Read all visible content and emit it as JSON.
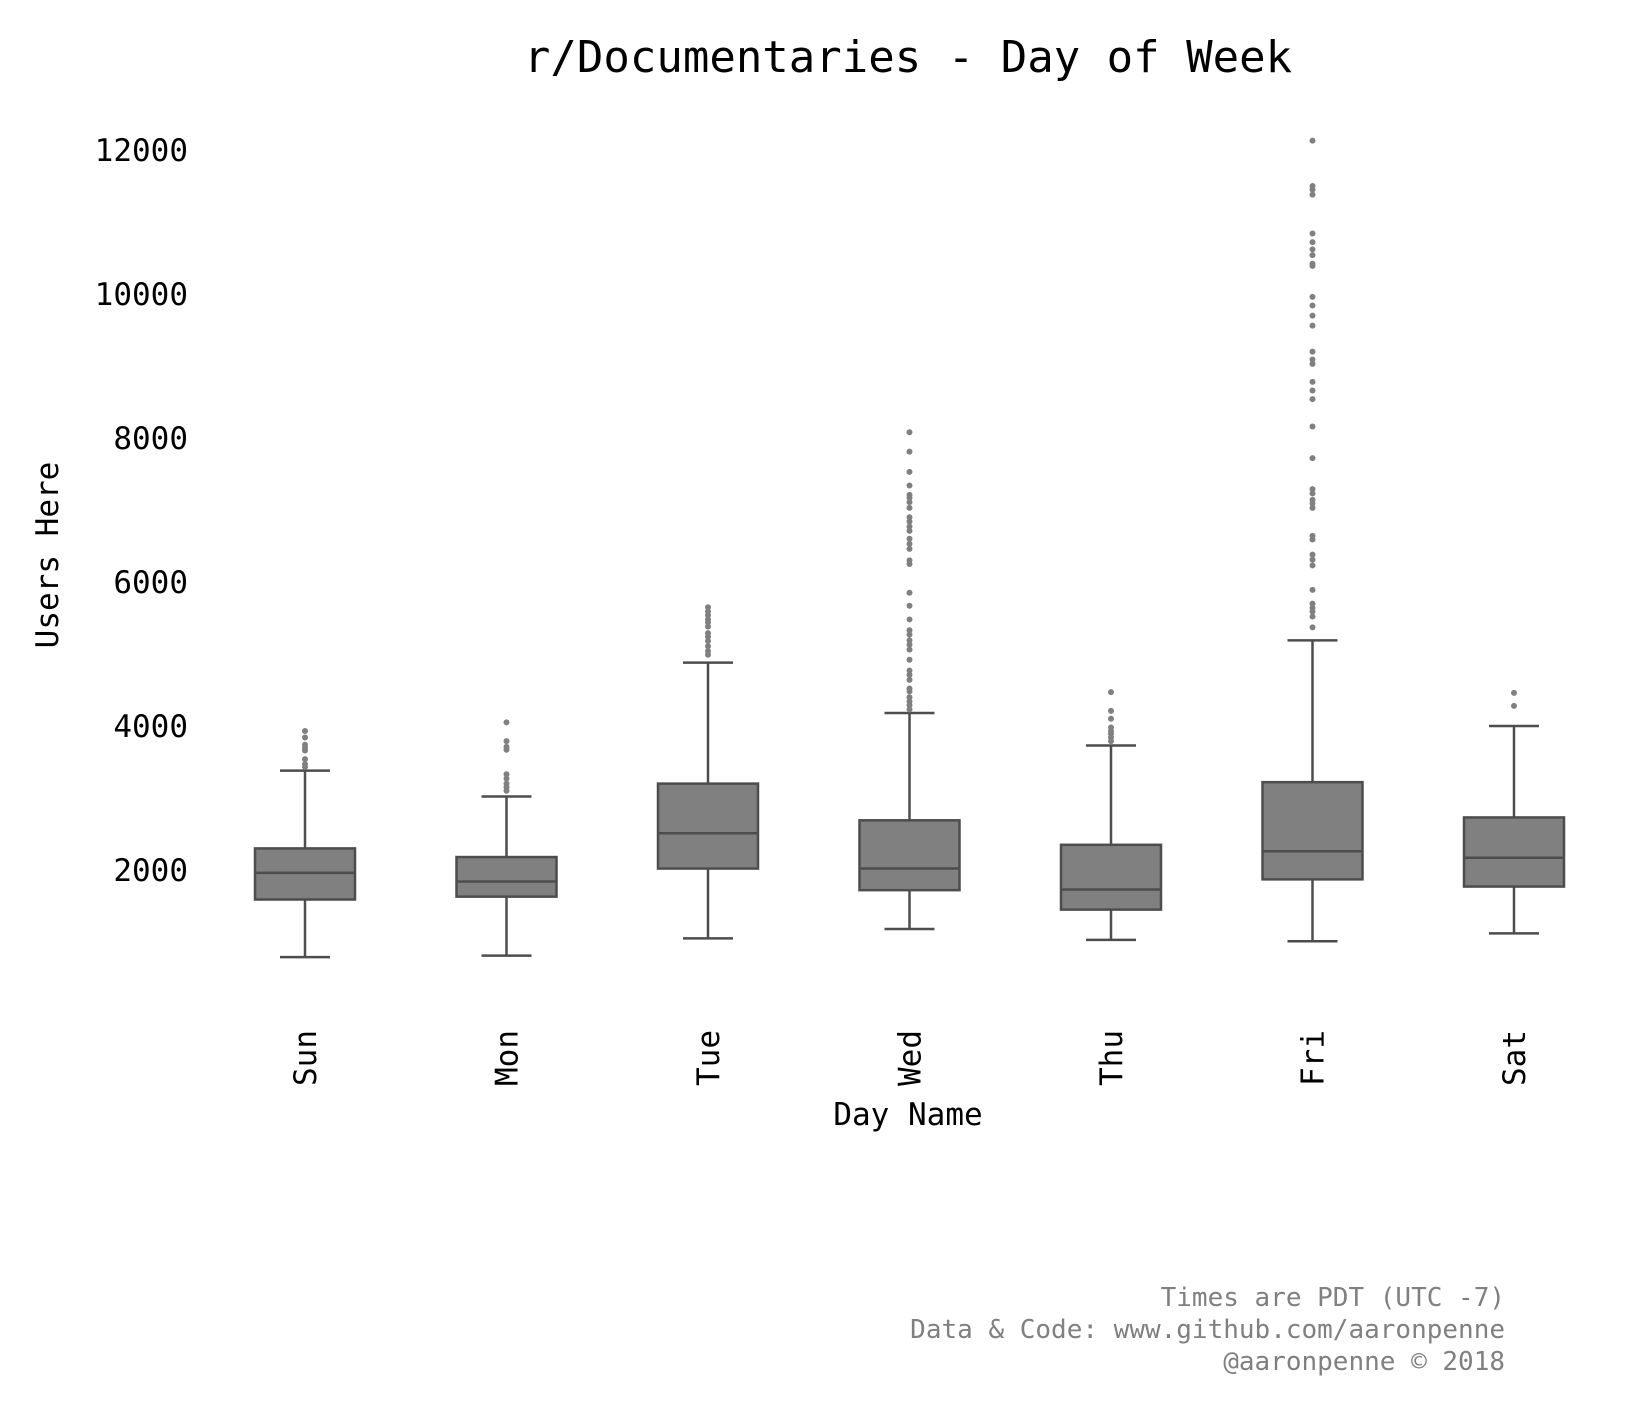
{
  "chart_data": {
    "type": "box",
    "title": "r/Documentaries - Day of Week",
    "xlabel": "Day Name",
    "ylabel": "Users Here",
    "ylim": [
      0,
      12500
    ],
    "yticks": [
      2000,
      4000,
      6000,
      8000,
      10000,
      12000
    ],
    "grid": false,
    "categories": [
      "Sun",
      "Mon",
      "Tue",
      "Wed",
      "Thu",
      "Fri",
      "Sat"
    ],
    "boxes": [
      {
        "category": "Sun",
        "whisker_low": 790,
        "q1": 1590,
        "median": 1960,
        "q3": 2300,
        "whisker_high": 3380,
        "outliers": [
          3430,
          3470,
          3540,
          3660,
          3700,
          3740,
          3840,
          3930
        ]
      },
      {
        "category": "Mon",
        "whisker_low": 810,
        "q1": 1630,
        "median": 1840,
        "q3": 2180,
        "whisker_high": 3020,
        "outliers": [
          3100,
          3150,
          3200,
          3270,
          3330,
          3670,
          3710,
          3790,
          4050
        ]
      },
      {
        "category": "Tue",
        "whisker_low": 1050,
        "q1": 2020,
        "median": 2510,
        "q3": 3200,
        "whisker_high": 4880,
        "outliers": [
          4990,
          5040,
          5110,
          5180,
          5240,
          5290,
          5380,
          5440,
          5480,
          5540,
          5590,
          5650
        ]
      },
      {
        "category": "Wed",
        "whisker_low": 1180,
        "q1": 1720,
        "median": 2020,
        "q3": 2690,
        "whisker_high": 4180,
        "outliers": [
          4230,
          4290,
          4340,
          4400,
          4480,
          4520,
          4640,
          4710,
          4770,
          4920,
          5060,
          5130,
          5190,
          5270,
          5330,
          5480,
          5670,
          5850,
          6250,
          6300,
          6460,
          6530,
          6600,
          6710,
          6770,
          6840,
          6900,
          7030,
          7110,
          7170,
          7210,
          7340,
          7530,
          7810,
          8080
        ]
      },
      {
        "category": "Thu",
        "whisker_low": 1030,
        "q1": 1450,
        "median": 1730,
        "q3": 2350,
        "whisker_high": 3730,
        "outliers": [
          3790,
          3840,
          3890,
          3930,
          3980,
          4100,
          4210,
          4470
        ]
      },
      {
        "category": "Fri",
        "whisker_low": 1010,
        "q1": 1870,
        "median": 2260,
        "q3": 3220,
        "whisker_high": 5190,
        "outliers": [
          5370,
          5520,
          5590,
          5640,
          5700,
          5890,
          6230,
          6310,
          6380,
          6590,
          6640,
          7030,
          7090,
          7140,
          7230,
          7290,
          7720,
          8160,
          8540,
          8660,
          8780,
          9030,
          9090,
          9200,
          9560,
          9700,
          9840,
          9960,
          10390,
          10420,
          10540,
          10620,
          10720,
          10840,
          11380,
          11450,
          11500,
          12130
        ]
      },
      {
        "category": "Sat",
        "whisker_low": 1120,
        "q1": 1770,
        "median": 2170,
        "q3": 2730,
        "whisker_high": 4000,
        "outliers": [
          4280,
          4460
        ]
      }
    ],
    "colors": {
      "box_fill": "#808080",
      "box_edge": "#4d4d4d",
      "outlier": "#808080"
    }
  },
  "footer": {
    "lines": [
      "Times are PDT (UTC -7)",
      "Data & Code: www.github.com/aaronpenne",
      "@aaronpenne © 2018"
    ]
  }
}
